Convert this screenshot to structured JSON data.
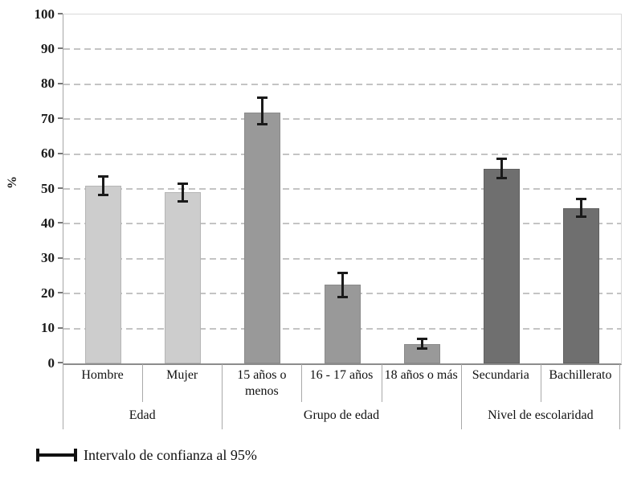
{
  "chart_data": {
    "type": "bar",
    "title": "",
    "ylabel": "%",
    "ylim": [
      0,
      100
    ],
    "ytick_step": 10,
    "yticks": [
      0,
      10,
      20,
      30,
      40,
      50,
      60,
      70,
      80,
      90,
      100
    ],
    "grid": "dashed horizontal",
    "legend_position": "bottom-left",
    "legend_label": "Intervalo de confianza al 95%",
    "error_bars": "95% confidence interval",
    "groups": [
      {
        "label": "Edad",
        "fill": "#cdcdcd",
        "border": "#b5b5b5",
        "categories": [
          {
            "label": "Hombre",
            "label_lines": [
              "Hombre"
            ],
            "value": 51,
            "ci_low": 48.2,
            "ci_high": 53.7
          },
          {
            "label": "Mujer",
            "label_lines": [
              "Mujer"
            ],
            "value": 49,
            "ci_low": 46.4,
            "ci_high": 51.6
          }
        ]
      },
      {
        "label": "Grupo de edad",
        "fill": "#999999",
        "border": "#8a8a8a",
        "categories": [
          {
            "label": "15 años o menos",
            "label_lines": [
              "15  años o",
              "menos"
            ],
            "value": 72,
            "ci_low": 68.4,
            "ci_high": 76.2
          },
          {
            "label": "16 - 17 años",
            "label_lines": [
              "16 - 17 años"
            ],
            "value": 22.5,
            "ci_low": 19,
            "ci_high": 26
          },
          {
            "label": "18 años o más",
            "label_lines": [
              "18 años o más"
            ],
            "value": 5.5,
            "ci_low": 4.1,
            "ci_high": 7.2
          }
        ]
      },
      {
        "label": "Nivel de escolaridad",
        "fill": "#6f6f6f",
        "border": "#606060",
        "categories": [
          {
            "label": "Secundaria",
            "label_lines": [
              "Secundaria"
            ],
            "value": 55.8,
            "ci_low": 53,
            "ci_high": 58.7
          },
          {
            "label": "Bachillerato",
            "label_lines": [
              "Bachillerato"
            ],
            "value": 44.5,
            "ci_low": 42,
            "ci_high": 47.3
          }
        ]
      }
    ],
    "colors": {
      "gridline": "#c4c4c4",
      "axis_line": "#a6a6a6",
      "baseline": "#8c8c8c",
      "plot_border": "#d9d9d9",
      "separator": "#a9a9a9",
      "error_bar": "#1a1a1a",
      "background": "#ffffff"
    }
  }
}
